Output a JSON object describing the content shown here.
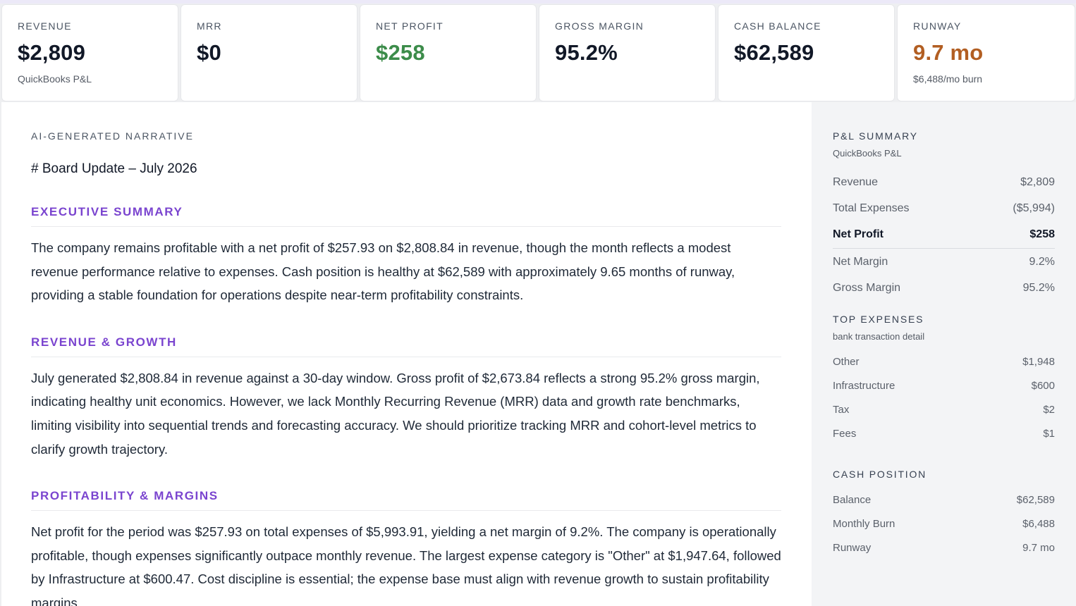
{
  "kpis": [
    {
      "label": "REVENUE",
      "value": "$2,809",
      "sub": "QuickBooks P&L",
      "tone": "default"
    },
    {
      "label": "MRR",
      "value": "$0",
      "sub": "",
      "tone": "default"
    },
    {
      "label": "NET PROFIT",
      "value": "$258",
      "sub": "",
      "tone": "green"
    },
    {
      "label": "GROSS MARGIN",
      "value": "95.2%",
      "sub": "",
      "tone": "default"
    },
    {
      "label": "CASH BALANCE",
      "value": "$62,589",
      "sub": "",
      "tone": "default"
    },
    {
      "label": "RUNWAY",
      "value": "9.7 mo",
      "sub": "$6,488/mo burn",
      "tone": "amber"
    }
  ],
  "narrative": {
    "eyebrow": "AI-GENERATED NARRATIVE",
    "title": "# Board Update – July 2026",
    "sections": [
      {
        "heading": "EXECUTIVE SUMMARY",
        "body": "The company remains profitable with a net profit of $257.93 on $2,808.84 in revenue, though the month reflects a modest revenue performance relative to expenses. Cash position is healthy at $62,589 with approximately 9.65 months of runway, providing a stable foundation for operations despite near-term profitability constraints."
      },
      {
        "heading": "REVENUE & GROWTH",
        "body": "July generated $2,808.84 in revenue against a 30-day window. Gross profit of $2,673.84 reflects a strong 95.2% gross margin, indicating healthy unit economics. However, we lack Monthly Recurring Revenue (MRR) data and growth rate benchmarks, limiting visibility into sequential trends and forecasting accuracy. We should prioritize tracking MRR and cohort-level metrics to clarify growth trajectory."
      },
      {
        "heading": "PROFITABILITY & MARGINS",
        "body": "Net profit for the period was $257.93 on total expenses of $5,993.91, yielding a net margin of 9.2%. The company is operationally profitable, though expenses significantly outpace monthly revenue. The largest expense category is \"Other\" at $1,947.64, followed by Infrastructure at $600.47. Cost discipline is essential; the expense base must align with revenue growth to sustain profitability margins."
      }
    ]
  },
  "sidebar": {
    "pl_summary": {
      "heading": "P&L SUMMARY",
      "source": "QuickBooks P&L",
      "rows": [
        {
          "label": "Revenue",
          "value": "$2,809"
        },
        {
          "label": "Total Expenses",
          "value": "($5,994)"
        },
        {
          "label": "Net Profit",
          "value": "$258"
        },
        {
          "label": "Net Margin",
          "value": "9.2%"
        },
        {
          "label": "Gross Margin",
          "value": "95.2%"
        }
      ]
    },
    "top_expenses": {
      "heading": "TOP EXPENSES",
      "source": "bank transaction detail",
      "rows": [
        {
          "label": "Other",
          "value": "$1,948"
        },
        {
          "label": "Infrastructure",
          "value": "$600"
        },
        {
          "label": "Tax",
          "value": "$2"
        },
        {
          "label": "Fees",
          "value": "$1"
        }
      ]
    },
    "cash_position": {
      "heading": "CASH POSITION",
      "rows": [
        {
          "label": "Balance",
          "value": "$62,589"
        },
        {
          "label": "Monthly Burn",
          "value": "$6,488"
        },
        {
          "label": "Runway",
          "value": "9.7 mo"
        }
      ]
    }
  },
  "colors": {
    "accent": "#7a44cf",
    "positive": "#3c8c4a",
    "warning": "#b25e22"
  }
}
